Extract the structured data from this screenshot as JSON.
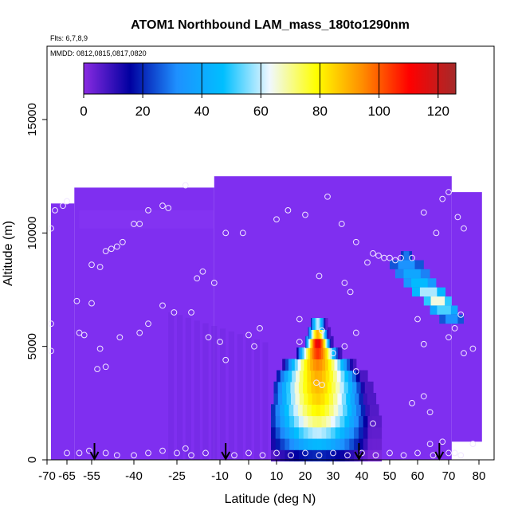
{
  "chart_data": {
    "type": "heatmap",
    "title": "ATOM1 Northbound LAM_mass_180to1290nm",
    "flights_note": "Flts: 6,7,8,9",
    "dates_note": "MMDD: 0812,0815,0817,0820",
    "xlabel": "Latitude (deg N)",
    "ylabel": "Altitude (m)",
    "xlim": [
      -70,
      82
    ],
    "ylim": [
      0,
      18000
    ],
    "x_ticks": [
      "-70",
      "-65",
      "-55",
      "-40",
      "-25",
      "-10",
      "0",
      "10",
      "20",
      "30",
      "40",
      "50",
      "60",
      "70",
      "80"
    ],
    "x_tick_values": [
      -70,
      -65,
      -55,
      -40,
      -25,
      -10,
      0,
      10,
      20,
      30,
      40,
      50,
      60,
      70,
      80
    ],
    "y_ticks": [
      "0",
      "5000",
      "10000",
      "15000"
    ],
    "y_tick_values": [
      0,
      5000,
      10000,
      15000
    ],
    "colorbar": {
      "min": 0,
      "max": 126,
      "ticks": [
        "0",
        "20",
        "40",
        "60",
        "80",
        "100",
        "120"
      ],
      "tick_values": [
        0,
        20,
        40,
        60,
        80,
        100,
        120
      ],
      "colors": [
        "#8a2be2",
        "#0000a0",
        "#1e90ff",
        "#00bfff",
        "#f0f8ff",
        "#ffff00",
        "#ff8c00",
        "#ff0000",
        "#a52a2a"
      ]
    },
    "background_color": "#7f2ff0",
    "coverage": [
      {
        "lat_min": -69,
        "lat_max": -62,
        "alt_min": 0,
        "alt_max": 11300
      },
      {
        "lat_min": -62,
        "lat_max": -12,
        "alt_min": 0,
        "alt_max": 12000
      },
      {
        "lat_min": -12,
        "lat_max": 71,
        "alt_min": 0,
        "alt_max": 12500
      },
      {
        "lat_min": 71,
        "lat_max": 81,
        "alt_min": 800,
        "alt_max": 11800
      }
    ],
    "plume_profile": [
      {
        "alt": 200,
        "lat_min": 8,
        "lat_max": 47,
        "peak": 20
      },
      {
        "alt": 700,
        "lat_min": 8,
        "lat_max": 47,
        "peak": 45
      },
      {
        "alt": 1200,
        "lat_min": 8,
        "lat_max": 47,
        "peak": 60
      },
      {
        "alt": 1700,
        "lat_min": 8,
        "lat_max": 47,
        "peak": 72
      },
      {
        "alt": 2200,
        "lat_min": 8,
        "lat_max": 46,
        "peak": 80
      },
      {
        "alt": 2700,
        "lat_min": 9,
        "lat_max": 45,
        "peak": 85
      },
      {
        "alt": 3200,
        "lat_min": 9,
        "lat_max": 44,
        "peak": 88
      },
      {
        "alt": 3700,
        "lat_min": 10,
        "lat_max": 42,
        "peak": 90
      },
      {
        "alt": 4200,
        "lat_min": 12,
        "lat_max": 38,
        "peak": 95
      },
      {
        "alt": 4700,
        "lat_min": 17,
        "lat_max": 33,
        "peak": 105
      },
      {
        "alt": 5200,
        "lat_min": 20,
        "lat_max": 30,
        "peak": 115
      },
      {
        "alt": 5600,
        "lat_min": 21,
        "lat_max": 29,
        "peak": 90
      },
      {
        "alt": 6000,
        "lat_min": 22,
        "lat_max": 28,
        "peak": 60
      }
    ],
    "secondary_band": [
      {
        "alt": 9000,
        "lat_min": 54,
        "lat_max": 58,
        "value": 22
      },
      {
        "alt": 8600,
        "lat_min": 50,
        "lat_max": 62,
        "value": 25
      },
      {
        "alt": 8200,
        "lat_min": 52,
        "lat_max": 64,
        "value": 30
      },
      {
        "alt": 7800,
        "lat_min": 55,
        "lat_max": 66,
        "value": 35
      },
      {
        "alt": 7400,
        "lat_min": 58,
        "lat_max": 69,
        "value": 45
      },
      {
        "alt": 7000,
        "lat_min": 62,
        "lat_max": 71,
        "value": 50
      },
      {
        "alt": 6600,
        "lat_min": 64,
        "lat_max": 73,
        "value": 40
      },
      {
        "alt": 6200,
        "lat_min": 67,
        "lat_max": 75,
        "value": 25
      }
    ],
    "sample_points": [
      [
        -69,
        10200
      ],
      [
        -68,
        11000
      ],
      [
        -66,
        11200
      ],
      [
        -65,
        11400
      ],
      [
        -69,
        6000
      ],
      [
        -69,
        4800
      ],
      [
        -61,
        7000
      ],
      [
        -60,
        5600
      ],
      [
        -58,
        5500
      ],
      [
        -55,
        6900
      ],
      [
        -55,
        8600
      ],
      [
        -52,
        8500
      ],
      [
        -50,
        9200
      ],
      [
        -48,
        9300
      ],
      [
        -46,
        9400
      ],
      [
        -44,
        9600
      ],
      [
        -40,
        10400
      ],
      [
        -38,
        10400
      ],
      [
        -35,
        11000
      ],
      [
        -30,
        11200
      ],
      [
        -28,
        11100
      ],
      [
        -22,
        12100
      ],
      [
        -30,
        6800
      ],
      [
        -26,
        6500
      ],
      [
        -20,
        6500
      ],
      [
        -35,
        6000
      ],
      [
        -38,
        5600
      ],
      [
        -45,
        5400
      ],
      [
        -52,
        4900
      ],
      [
        -53,
        4000
      ],
      [
        -50,
        4100
      ],
      [
        -18,
        8000
      ],
      [
        -16,
        8300
      ],
      [
        -12,
        7800
      ],
      [
        -14,
        5400
      ],
      [
        -10,
        5200
      ],
      [
        -8,
        10000
      ],
      [
        -2,
        10000
      ],
      [
        0,
        5500
      ],
      [
        2,
        5000
      ],
      [
        4,
        5800
      ],
      [
        10,
        10600
      ],
      [
        14,
        11000
      ],
      [
        18,
        6200
      ],
      [
        20,
        10800
      ],
      [
        25,
        8100
      ],
      [
        28,
        11600
      ],
      [
        33,
        10400
      ],
      [
        34,
        7800
      ],
      [
        36,
        7400
      ],
      [
        38,
        9600
      ],
      [
        42,
        8700
      ],
      [
        44,
        9100
      ],
      [
        46,
        9000
      ],
      [
        48,
        8900
      ],
      [
        50,
        8900
      ],
      [
        52,
        8800
      ],
      [
        54,
        8900
      ],
      [
        58,
        8900
      ],
      [
        62,
        10900
      ],
      [
        66,
        10000
      ],
      [
        68,
        11500
      ],
      [
        70,
        11800
      ],
      [
        73,
        10700
      ],
      [
        75,
        10200
      ],
      [
        74,
        6400
      ],
      [
        72,
        5800
      ],
      [
        70,
        5400
      ],
      [
        75,
        4700
      ],
      [
        78,
        4900
      ],
      [
        62,
        5100
      ],
      [
        60,
        6200
      ],
      [
        58,
        2500
      ],
      [
        62,
        2800
      ],
      [
        64,
        2100
      ],
      [
        64,
        700
      ],
      [
        68,
        800
      ],
      [
        70,
        300
      ],
      [
        72,
        300
      ],
      [
        74,
        200
      ],
      [
        30,
        4700
      ],
      [
        34,
        5000
      ],
      [
        38,
        3900
      ],
      [
        44,
        1600
      ],
      [
        38,
        5600
      ],
      [
        26,
        5700
      ],
      [
        18,
        5200
      ],
      [
        -8,
        4400
      ],
      [
        -65,
        300
      ],
      [
        -60,
        300
      ],
      [
        -56,
        400
      ],
      [
        -50,
        300
      ],
      [
        -46,
        200
      ],
      [
        -40,
        200
      ],
      [
        -35,
        300
      ],
      [
        -30,
        400
      ],
      [
        -25,
        300
      ],
      [
        -20,
        200
      ],
      [
        -15,
        300
      ],
      [
        -5,
        200
      ],
      [
        0,
        300
      ],
      [
        5,
        200
      ],
      [
        10,
        300
      ],
      [
        15,
        200
      ],
      [
        20,
        300
      ],
      [
        25,
        200
      ],
      [
        30,
        300
      ],
      [
        35,
        200
      ],
      [
        40,
        300
      ],
      [
        45,
        200
      ],
      [
        50,
        300
      ],
      [
        55,
        200
      ],
      [
        60,
        300
      ],
      [
        65,
        200
      ],
      [
        -22,
        500
      ],
      [
        78,
        700
      ],
      [
        24,
        3400
      ],
      [
        26,
        3300
      ]
    ],
    "arrows": [
      -54,
      -8,
      39,
      67
    ]
  }
}
